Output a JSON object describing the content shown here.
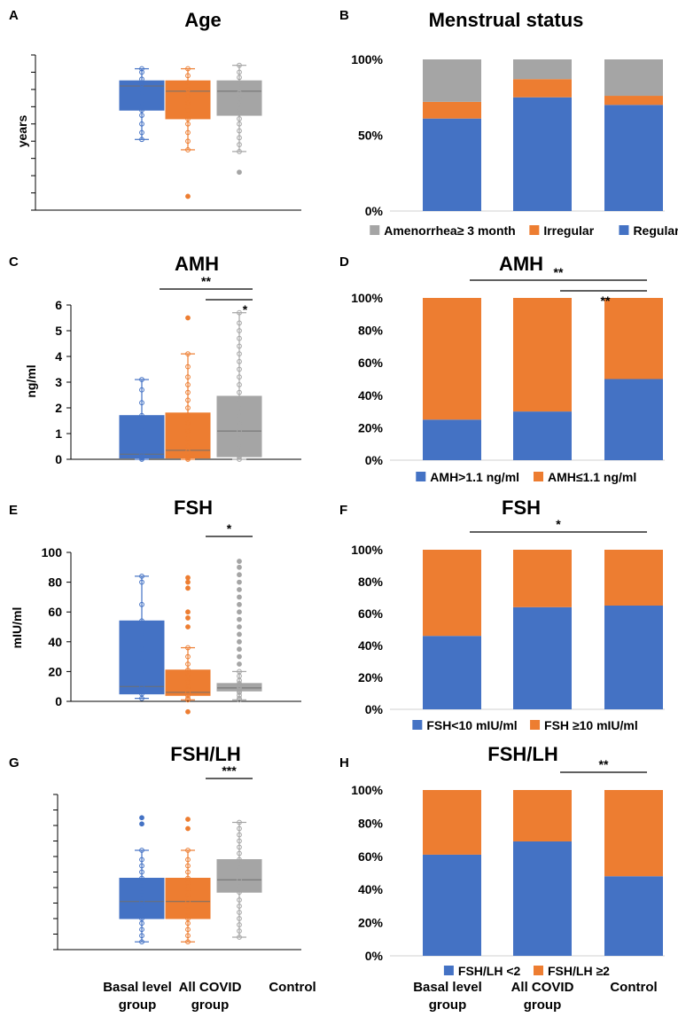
{
  "groups": [
    "Basal level group",
    "All COVID group",
    "Control"
  ],
  "x_labels": [
    [
      "Basal level",
      "group"
    ],
    [
      "All COVID",
      "group"
    ],
    [
      "Control",
      ""
    ]
  ],
  "colors": {
    "basal": "#4472C4",
    "covid": "#ED7D31",
    "control": "#A5A5A5"
  },
  "chart_data": [
    {
      "id": "A",
      "type": "box",
      "title": "Age",
      "ylabel": "years",
      "ylim": [
        0,
        9
      ],
      "ytick_count": 9,
      "show_tick_labels": false,
      "boxes": [
        {
          "q1": 5.8,
          "median": 7.2,
          "q3": 7.5,
          "wlo": 4.1,
          "whi": 8.2,
          "points": [
            4.1,
            4.5,
            5.0,
            5.5,
            5.8,
            6.2,
            6.6,
            7.0,
            7.3,
            7.6,
            8.0,
            8.2
          ]
        },
        {
          "q1": 5.3,
          "median": 6.9,
          "q3": 7.5,
          "wlo": 3.5,
          "whi": 8.2,
          "points": [
            0.8,
            3.5,
            4.0,
            4.5,
            5.0,
            5.3,
            5.8,
            6.2,
            6.6,
            7.0,
            7.4,
            7.8,
            8.2
          ]
        },
        {
          "q1": 5.5,
          "median": 6.9,
          "q3": 7.5,
          "wlo": 3.4,
          "whi": 8.4,
          "points": [
            2.2,
            3.4,
            3.8,
            4.2,
            4.6,
            5.0,
            5.3,
            5.6,
            5.9,
            6.2,
            6.5,
            6.8,
            7.1,
            7.4,
            7.7,
            8.0,
            8.4
          ]
        }
      ],
      "significance": []
    },
    {
      "id": "B",
      "type": "stacked_bar",
      "title": "Menstrual status",
      "yticks": [
        "0%",
        "50%",
        "100%"
      ],
      "series": [
        {
          "name": "Regular",
          "color": "#4472C4",
          "values": [
            61,
            75,
            70
          ]
        },
        {
          "name": "Irregular",
          "color": "#ED7D31",
          "values": [
            11,
            12,
            6
          ]
        },
        {
          "name": "Amenorrhea≥ 3 month",
          "color": "#A5A5A5",
          "values": [
            28,
            13,
            24
          ]
        }
      ],
      "legend": [
        "Amenorrhea≥ 3 month",
        "Irregular",
        "Regular"
      ],
      "significance": []
    },
    {
      "id": "C",
      "type": "box",
      "title": "AMH",
      "ylabel": "ng/ml",
      "ylim": [
        0,
        6
      ],
      "ytick_count": 6,
      "show_tick_labels": true,
      "yticks": [
        "0",
        "1",
        "2",
        "3",
        "4",
        "5",
        "6"
      ],
      "boxes": [
        {
          "q1": 0.05,
          "median": 0.2,
          "q3": 1.7,
          "wlo": 0.0,
          "whi": 3.1,
          "points": [
            0.0,
            0.05,
            0.1,
            0.2,
            0.4,
            0.9,
            1.1,
            1.7,
            2.2,
            2.7,
            3.1
          ]
        },
        {
          "q1": 0.05,
          "median": 0.35,
          "q3": 1.8,
          "wlo": 0.0,
          "whi": 4.1,
          "points": [
            0.0,
            0.05,
            0.1,
            0.3,
            0.5,
            0.8,
            1.1,
            1.4,
            1.7,
            2.0,
            2.3,
            2.6,
            2.9,
            3.2,
            3.6,
            4.1,
            5.5
          ]
        },
        {
          "q1": 0.1,
          "median": 1.1,
          "q3": 2.45,
          "wlo": 0.0,
          "whi": 5.7,
          "points": [
            0.0,
            0.1,
            0.3,
            0.5,
            0.8,
            1.1,
            1.4,
            1.7,
            2.0,
            2.3,
            2.6,
            2.9,
            3.2,
            3.5,
            3.8,
            4.1,
            4.4,
            4.7,
            5.0,
            5.3,
            5.7
          ]
        }
      ],
      "significance": [
        {
          "from": 0,
          "to": 2,
          "label": "**",
          "level": 0
        },
        {
          "from": 1,
          "to": 2,
          "label": "*",
          "level": 1
        }
      ]
    },
    {
      "id": "D",
      "type": "stacked_bar",
      "title": "AMH",
      "yticks": [
        "0%",
        "20%",
        "40%",
        "60%",
        "80%",
        "100%"
      ],
      "series": [
        {
          "name": "AMH>1.1 ng/ml",
          "color": "#4472C4",
          "values": [
            25,
            30,
            50
          ]
        },
        {
          "name": "AMH≤1.1 ng/ml",
          "color": "#ED7D31",
          "values": [
            75,
            70,
            50
          ]
        }
      ],
      "legend": [
        "AMH>1.1 ng/ml",
        "AMH≤1.1 ng/ml"
      ],
      "significance": [
        {
          "from": 0,
          "to": 2,
          "label": "**",
          "level": 0
        },
        {
          "from": 1,
          "to": 2,
          "label": "**",
          "level": 1
        }
      ]
    },
    {
      "id": "E",
      "type": "box",
      "title": "FSH",
      "ylabel": "mIU/ml",
      "ylim": [
        0,
        100
      ],
      "ytick_count": 5,
      "show_tick_labels": true,
      "yticks": [
        "0",
        "20",
        "40",
        "60",
        "80",
        "100"
      ],
      "boxes": [
        {
          "q1": 5,
          "median": 10,
          "q3": 54,
          "wlo": 2,
          "whi": 84,
          "points": [
            2,
            5,
            8,
            10,
            15,
            20,
            27,
            35,
            45,
            54,
            65,
            80,
            84
          ]
        },
        {
          "q1": 4,
          "median": 6,
          "q3": 21,
          "wlo": 1,
          "whi": 36,
          "points": [
            -7,
            1,
            2,
            4,
            6,
            8,
            10,
            13,
            17,
            21,
            25,
            30,
            36,
            50,
            56,
            60,
            76,
            80,
            83
          ]
        },
        {
          "q1": 7,
          "median": 9,
          "q3": 12,
          "wlo": 1,
          "whi": 20,
          "points": [
            1,
            2,
            4,
            6,
            7,
            8,
            9,
            10,
            11,
            12,
            14,
            17,
            20,
            25,
            30,
            35,
            40,
            45,
            50,
            55,
            60,
            65,
            70,
            75,
            80,
            85,
            90,
            94
          ]
        }
      ],
      "significance": [
        {
          "from": 1,
          "to": 2,
          "label": "*",
          "level": 0
        }
      ]
    },
    {
      "id": "F",
      "type": "stacked_bar",
      "title": "FSH",
      "yticks": [
        "0%",
        "20%",
        "40%",
        "60%",
        "80%",
        "100%"
      ],
      "series": [
        {
          "name": "FSH<10 mIU/ml",
          "color": "#4472C4",
          "values": [
            46,
            64,
            65
          ]
        },
        {
          "name": "FSH ≥10 mIU/ml",
          "color": "#ED7D31",
          "values": [
            54,
            36,
            35
          ]
        }
      ],
      "legend": [
        "FSH<10 mIU/ml",
        "FSH ≥10 mIU/ml"
      ],
      "significance": [
        {
          "from": 0,
          "to": 2,
          "label": "*",
          "level": 0
        }
      ]
    },
    {
      "id": "G",
      "type": "box",
      "title": "FSH/LH",
      "ylabel": "",
      "ylim": [
        0,
        10
      ],
      "ytick_count": 10,
      "show_tick_labels": false,
      "boxes": [
        {
          "q1": 2.0,
          "median": 3.1,
          "q3": 4.6,
          "wlo": 0.5,
          "whi": 6.4,
          "points": [
            0.5,
            0.9,
            1.3,
            1.7,
            2.0,
            2.4,
            2.8,
            3.1,
            3.5,
            3.9,
            4.3,
            4.6,
            5.0,
            5.4,
            5.8,
            6.4,
            8.1,
            8.5
          ]
        },
        {
          "q1": 2.0,
          "median": 3.1,
          "q3": 4.6,
          "wlo": 0.5,
          "whi": 6.4,
          "points": [
            0.5,
            0.9,
            1.3,
            1.7,
            2.0,
            2.4,
            2.8,
            3.1,
            3.5,
            3.9,
            4.3,
            4.6,
            5.0,
            5.4,
            5.8,
            6.4,
            7.8,
            8.4
          ]
        },
        {
          "q1": 3.7,
          "median": 4.5,
          "q3": 5.8,
          "wlo": 0.8,
          "whi": 8.2,
          "points": [
            0.8,
            1.2,
            1.6,
            2.0,
            2.4,
            2.8,
            3.2,
            3.7,
            4.1,
            4.5,
            4.9,
            5.3,
            5.8,
            6.2,
            6.6,
            7.0,
            7.4,
            7.8,
            8.2
          ]
        }
      ],
      "significance": [
        {
          "from": 1,
          "to": 2,
          "label": "***",
          "level": 0
        }
      ]
    },
    {
      "id": "H",
      "type": "stacked_bar",
      "title": "FSH/LH",
      "yticks": [
        "0%",
        "20%",
        "40%",
        "60%",
        "80%",
        "100%"
      ],
      "series": [
        {
          "name": "FSH/LH <2",
          "color": "#4472C4",
          "values": [
            61,
            69,
            48
          ]
        },
        {
          "name": "FSH/LH ≥2",
          "color": "#ED7D31",
          "values": [
            39,
            31,
            52
          ]
        }
      ],
      "legend": [
        "FSH/LH <2",
        "FSH/LH ≥2"
      ],
      "significance": [
        {
          "from": 1,
          "to": 2,
          "label": "**",
          "level": 0
        }
      ]
    }
  ]
}
